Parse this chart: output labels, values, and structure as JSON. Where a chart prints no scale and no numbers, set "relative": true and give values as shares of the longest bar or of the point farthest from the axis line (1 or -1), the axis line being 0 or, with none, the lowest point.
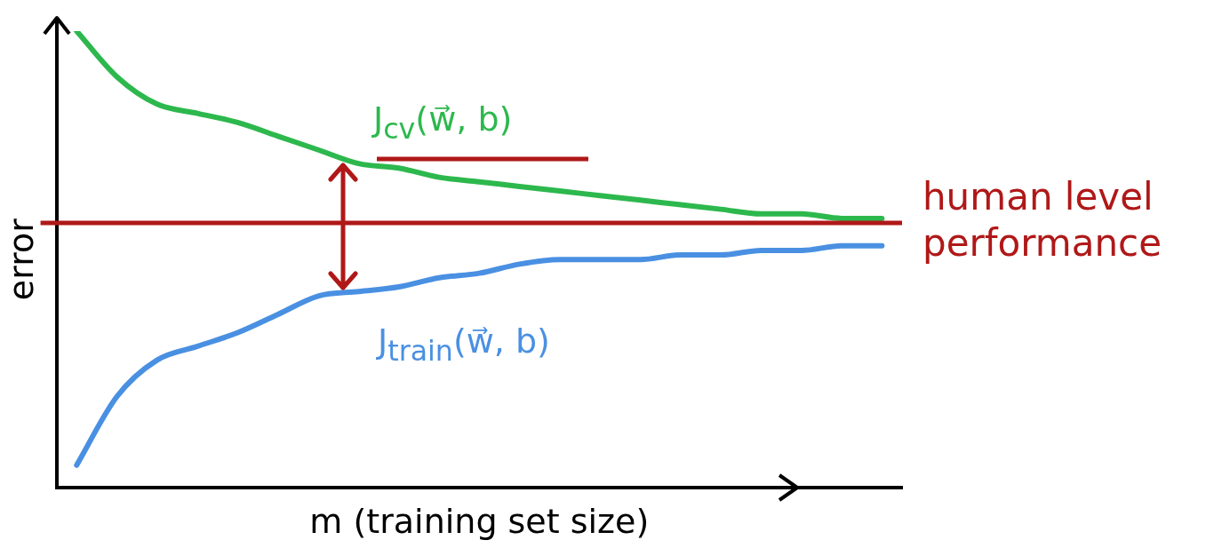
{
  "chart_data": {
    "type": "line",
    "relative": true,
    "xlabel": "m (training set size)",
    "ylabel": "error",
    "categories": [
      null,
      null,
      null,
      null,
      null,
      null,
      null,
      null,
      null,
      null,
      null,
      null,
      null,
      null,
      null,
      null,
      null,
      null,
      null,
      null,
      null
    ],
    "series": [
      {
        "name": "J$_{cv}$(w⃗, b)",
        "color": "#2db84d",
        "values": [
          1.0,
          0.9,
          0.84,
          0.82,
          0.8,
          0.77,
          0.74,
          0.71,
          0.7,
          0.68,
          0.67,
          0.66,
          0.65,
          0.64,
          0.63,
          0.62,
          0.61,
          0.6,
          0.6,
          0.59,
          0.59
        ]
      },
      {
        "name": "J$_{train}$(w⃗, b)",
        "color": "#4a90e2",
        "values": [
          0.05,
          0.2,
          0.28,
          0.31,
          0.34,
          0.38,
          0.42,
          0.43,
          0.44,
          0.46,
          0.47,
          0.49,
          0.5,
          0.5,
          0.5,
          0.51,
          0.51,
          0.52,
          0.52,
          0.53,
          0.53
        ]
      }
    ],
    "ref_lines": [
      {
        "axis": "y",
        "value": 0.58,
        "label": "human level performance",
        "color": "#b01818"
      }
    ],
    "legend": false,
    "marker": "none",
    "line_style": "solid"
  }
}
